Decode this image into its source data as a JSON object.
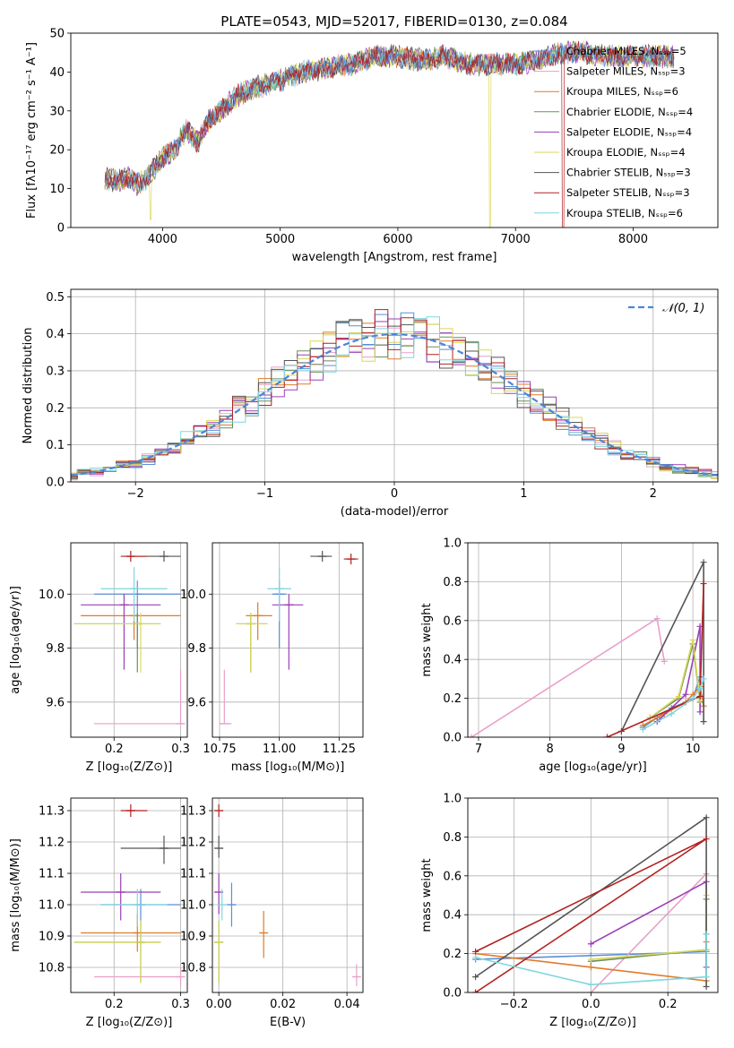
{
  "colors": [
    "#5b8fd6",
    "#e8a0c8",
    "#e07b2a",
    "#6b8f5a",
    "#9a3fb5",
    "#d8d85a",
    "#555555",
    "#b22222",
    "#7fd6e0"
  ],
  "chart_data": [
    {
      "type": "line",
      "title": "PLATE=0543, MJD=52017, FIBERID=0130, z=0.084",
      "xlabel": "wavelength [Angstrom, rest frame]",
      "ylabel": "Flux [fλ10⁻¹⁷ erg cm⁻² s⁻¹ A⁻¹]",
      "xlim": [
        3220,
        8720
      ],
      "ylim": [
        0,
        50
      ],
      "xticks": [
        4000,
        5000,
        6000,
        7000,
        8000
      ],
      "yticks": [
        0,
        10,
        20,
        30,
        40,
        50
      ],
      "grid": false,
      "legend_position": "top-right",
      "series": [
        {
          "name": "Chabrier MILES, Nₛₛₚ=5"
        },
        {
          "name": "Salpeter MILES, Nₛₛₚ=3"
        },
        {
          "name": "Kroupa MILES, Nₛₛₚ=6"
        },
        {
          "name": "Chabrier ELODIE, Nₛₛₚ=4"
        },
        {
          "name": "Salpeter ELODIE, Nₛₛₚ=4"
        },
        {
          "name": "Kroupa ELODIE, Nₛₛₚ=4"
        },
        {
          "name": "Chabrier STELIB, Nₛₛₚ=3"
        },
        {
          "name": "Salpeter STELIB, Nₛₛₚ=3"
        },
        {
          "name": "Kroupa STELIB, Nₛₛₚ=6"
        }
      ],
      "continuum": {
        "x": [
          3500,
          3600,
          3700,
          3800,
          3900,
          4000,
          4100,
          4200,
          4300,
          4400,
          4500,
          4600,
          4700,
          4800,
          4900,
          5000,
          5200,
          5400,
          5600,
          5800,
          6000,
          6200,
          6400,
          6600,
          6800,
          7000,
          7200,
          7400,
          7600,
          7800,
          8000,
          8200,
          8400
        ],
        "y": [
          13,
          12,
          13,
          11,
          14,
          18,
          20,
          25,
          22,
          28,
          30,
          33,
          35,
          36,
          37,
          38,
          40,
          41,
          42,
          44,
          44,
          43,
          44,
          42,
          42,
          42,
          43,
          45,
          45,
          44,
          44,
          44,
          44
        ]
      }
    },
    {
      "type": "line",
      "xlabel": "(data-model)/error",
      "ylabel": "Normed distribution",
      "xlim": [
        -2.5,
        2.5
      ],
      "ylim": [
        0,
        0.52
      ],
      "xticks": [
        -2,
        -1,
        0,
        1,
        2
      ],
      "yticks": [
        0.0,
        0.1,
        0.2,
        0.3,
        0.4,
        0.5
      ],
      "grid": true,
      "legend": "𝒩(0, 1)",
      "legend_position": "top-right"
    },
    {
      "type": "scatter",
      "xlabel": "Z [log₁₀(Z/Z⊙)]",
      "ylabel": "age  [log₁₀(age/yr)]",
      "xlim": [
        0.135,
        0.31
      ],
      "ylim": [
        9.47,
        10.19
      ],
      "xticks": [
        0.2,
        0.3
      ],
      "yticks": [
        9.6,
        9.8,
        10.0
      ],
      "points": [
        {
          "c": 0,
          "x": 0.235,
          "y": 10.0,
          "xe": [
            0.17,
            0.3
          ],
          "ye": [
            9.8,
            10.05
          ]
        },
        {
          "c": 1,
          "x": 0.3,
          "y": 9.52,
          "xe": [
            0.17,
            0.3
          ],
          "ye": [
            9.52,
            9.72
          ]
        },
        {
          "c": 2,
          "x": 0.23,
          "y": 9.92,
          "xe": [
            0.15,
            0.3
          ],
          "ye": [
            9.83,
            9.97
          ]
        },
        {
          "c": 3,
          "x": 0.235,
          "y": 9.89,
          "xe": [
            0.14,
            0.27
          ],
          "ye": [
            9.71,
            9.93
          ]
        },
        {
          "c": 4,
          "x": 0.215,
          "y": 9.96,
          "xe": [
            0.15,
            0.27
          ],
          "ye": [
            9.72,
            10.0
          ]
        },
        {
          "c": 5,
          "x": 0.24,
          "y": 9.89,
          "xe": [
            0.14,
            0.27
          ],
          "ye": [
            9.71,
            9.93
          ]
        },
        {
          "c": 6,
          "x": 0.275,
          "y": 10.14,
          "xe": [
            0.22,
            0.3
          ],
          "ye": [
            10.12,
            10.16
          ]
        },
        {
          "c": 7,
          "x": 0.225,
          "y": 10.14,
          "xe": [
            0.21,
            0.25
          ],
          "ye": [
            10.12,
            10.16
          ]
        },
        {
          "c": 8,
          "x": 0.23,
          "y": 10.02,
          "xe": [
            0.18,
            0.28
          ],
          "ye": [
            9.9,
            10.1
          ]
        }
      ]
    },
    {
      "type": "scatter",
      "xlabel": "mass [log₁₀(M/M⊙)]",
      "xlim": [
        10.72,
        11.35
      ],
      "ylim": [
        9.47,
        10.19
      ],
      "xticks": [
        10.75,
        11.0,
        11.25
      ],
      "yticks": [
        9.6,
        9.8,
        10.0
      ],
      "points": [
        {
          "c": 0,
          "x": 11.0,
          "y": 10.0,
          "xe": [
            10.97,
            11.03
          ],
          "ye": [
            9.8,
            10.05
          ]
        },
        {
          "c": 1,
          "x": 10.77,
          "y": 9.52,
          "xe": [
            10.75,
            10.8
          ],
          "ye": [
            9.52,
            9.72
          ]
        },
        {
          "c": 2,
          "x": 10.91,
          "y": 9.92,
          "xe": [
            10.86,
            10.97
          ],
          "ye": [
            9.83,
            9.97
          ]
        },
        {
          "c": 3,
          "x": 10.88,
          "y": 9.89,
          "xe": [
            10.82,
            10.95
          ],
          "ye": [
            9.71,
            9.93
          ]
        },
        {
          "c": 4,
          "x": 11.04,
          "y": 9.96,
          "xe": [
            10.97,
            11.1
          ],
          "ye": [
            9.72,
            10.0
          ]
        },
        {
          "c": 5,
          "x": 10.88,
          "y": 9.89,
          "xe": [
            10.82,
            10.95
          ],
          "ye": [
            9.71,
            9.93
          ]
        },
        {
          "c": 6,
          "x": 11.18,
          "y": 10.14,
          "xe": [
            11.13,
            11.22
          ],
          "ye": [
            10.12,
            10.16
          ]
        },
        {
          "c": 7,
          "x": 11.3,
          "y": 10.13,
          "xe": [
            11.27,
            11.33
          ],
          "ye": [
            10.11,
            10.15
          ]
        },
        {
          "c": 8,
          "x": 11.0,
          "y": 10.02,
          "xe": [
            10.95,
            11.05
          ],
          "ye": [
            9.9,
            10.1
          ]
        }
      ]
    },
    {
      "type": "line",
      "xlabel": "age  [log₁₀(age/yr)]",
      "ylabel": "mass weight",
      "xlim": [
        6.85,
        10.35
      ],
      "ylim": [
        0,
        1
      ],
      "xticks": [
        7,
        8,
        9,
        10
      ],
      "yticks": [
        0.0,
        0.2,
        0.4,
        0.6,
        0.8,
        1.0
      ],
      "series": [
        {
          "c": 0,
          "x": [
            9.3,
            9.5,
            9.7,
            9.9,
            10.0,
            10.1
          ],
          "y": [
            0.05,
            0.1,
            0.15,
            0.18,
            0.2,
            0.31
          ]
        },
        {
          "c": 1,
          "x": [
            6.9,
            9.5,
            9.6
          ],
          "y": [
            0.0,
            0.61,
            0.39
          ]
        },
        {
          "c": 2,
          "x": [
            9.3,
            9.6,
            9.9,
            10.0,
            10.1,
            10.15
          ],
          "y": [
            0.06,
            0.12,
            0.18,
            0.22,
            0.26,
            0.16
          ]
        },
        {
          "c": 3,
          "x": [
            9.4,
            9.8,
            10.0,
            10.1
          ],
          "y": [
            0.1,
            0.2,
            0.48,
            0.18
          ]
        },
        {
          "c": 4,
          "x": [
            9.5,
            9.9,
            10.1,
            10.1
          ],
          "y": [
            0.08,
            0.22,
            0.57,
            0.13
          ]
        },
        {
          "c": 5,
          "x": [
            9.4,
            9.8,
            10.0,
            10.1
          ],
          "y": [
            0.1,
            0.21,
            0.5,
            0.19
          ]
        },
        {
          "c": 6,
          "x": [
            9.0,
            10.15,
            10.15
          ],
          "y": [
            0.03,
            0.9,
            0.08
          ]
        },
        {
          "c": 7,
          "x": [
            8.8,
            10.1,
            10.15
          ],
          "y": [
            0.0,
            0.21,
            0.79
          ]
        },
        {
          "c": 8,
          "x": [
            9.3,
            9.7,
            10.0,
            10.1,
            10.15
          ],
          "y": [
            0.04,
            0.12,
            0.2,
            0.25,
            0.3
          ]
        }
      ]
    },
    {
      "type": "scatter",
      "xlabel": "Z [log₁₀(Z/Z⊙)]",
      "ylabel": "mass [log₁₀(M/M⊙)]",
      "xlim": [
        0.135,
        0.31
      ],
      "ylim": [
        10.72,
        11.34
      ],
      "xticks": [
        0.2,
        0.3
      ],
      "yticks": [
        10.8,
        10.9,
        11.0,
        11.1,
        11.2,
        11.3
      ],
      "points": [
        {
          "c": 0,
          "x": 0.24,
          "y": 11.0,
          "xe": [
            0.18,
            0.3
          ],
          "ye": [
            10.95,
            11.05
          ]
        },
        {
          "c": 1,
          "x": 0.3,
          "y": 10.77,
          "xe": [
            0.17,
            0.3
          ],
          "ye": [
            10.74,
            10.8
          ]
        },
        {
          "c": 2,
          "x": 0.235,
          "y": 10.91,
          "xe": [
            0.15,
            0.3
          ],
          "ye": [
            10.85,
            10.97
          ]
        },
        {
          "c": 3,
          "x": 0.24,
          "y": 10.88,
          "xe": [
            0.14,
            0.27
          ],
          "ye": [
            10.75,
            10.95
          ]
        },
        {
          "c": 4,
          "x": 0.21,
          "y": 11.04,
          "xe": [
            0.15,
            0.27
          ],
          "ye": [
            10.95,
            11.1
          ]
        },
        {
          "c": 5,
          "x": 0.24,
          "y": 10.88,
          "xe": [
            0.14,
            0.27
          ],
          "ye": [
            10.75,
            10.95
          ]
        },
        {
          "c": 6,
          "x": 0.275,
          "y": 11.18,
          "xe": [
            0.21,
            0.3
          ],
          "ye": [
            11.13,
            11.22
          ]
        },
        {
          "c": 7,
          "x": 0.225,
          "y": 11.3,
          "xe": [
            0.21,
            0.25
          ],
          "ye": [
            11.28,
            11.32
          ]
        },
        {
          "c": 8,
          "x": 0.235,
          "y": 11.0,
          "xe": [
            0.18,
            0.28
          ],
          "ye": [
            10.93,
            11.05
          ]
        }
      ]
    },
    {
      "type": "scatter",
      "xlabel": "E(B-V)",
      "xlim": [
        -0.002,
        0.045
      ],
      "ylim": [
        10.72,
        11.34
      ],
      "xticks": [
        0.0,
        0.02,
        0.04
      ],
      "yticks": [
        10.8,
        10.9,
        11.0,
        11.1,
        11.2,
        11.3
      ],
      "points": [
        {
          "c": 0,
          "x": 0.004,
          "y": 11.0,
          "ye": [
            10.93,
            11.07
          ]
        },
        {
          "c": 1,
          "x": 0.043,
          "y": 10.77,
          "ye": [
            10.74,
            10.81
          ]
        },
        {
          "c": 2,
          "x": 0.014,
          "y": 10.91,
          "ye": [
            10.83,
            10.98
          ]
        },
        {
          "c": 3,
          "x": 0.0,
          "y": 10.88,
          "ye": [
            10.75,
            10.95
          ]
        },
        {
          "c": 4,
          "x": 0.0,
          "y": 11.04,
          "ye": [
            10.97,
            11.1
          ]
        },
        {
          "c": 5,
          "x": 0.0,
          "y": 10.88,
          "ye": [
            10.75,
            10.95
          ]
        },
        {
          "c": 6,
          "x": 0.0,
          "y": 11.18,
          "ye": [
            11.15,
            11.22
          ]
        },
        {
          "c": 7,
          "x": 0.0,
          "y": 11.3,
          "ye": [
            11.28,
            11.32
          ]
        },
        {
          "c": 8,
          "x": 0.001,
          "y": 11.0,
          "ye": [
            10.95,
            11.05
          ]
        }
      ]
    },
    {
      "type": "line",
      "xlabel": "Z [log₁₀(Z/Z⊙)]",
      "ylabel": "mass weight",
      "xlim": [
        -0.32,
        0.33
      ],
      "ylim": [
        0,
        1
      ],
      "xticks": [
        -0.2,
        0.0,
        0.2
      ],
      "yticks": [
        0.0,
        0.2,
        0.4,
        0.6,
        0.8,
        1.0
      ],
      "series": [
        {
          "c": 0,
          "x": [
            -0.3,
            0.0,
            0.3,
            0.3
          ],
          "y": [
            0.17,
            0.19,
            0.21,
            0.3
          ]
        },
        {
          "c": 1,
          "x": [
            0.0,
            0.3
          ],
          "y": [
            0.0,
            0.61
          ]
        },
        {
          "c": 2,
          "x": [
            -0.3,
            0.0,
            0.3,
            0.3
          ],
          "y": [
            0.2,
            0.13,
            0.06,
            0.26
          ]
        },
        {
          "c": 3,
          "x": [
            0.0,
            0.3,
            0.3
          ],
          "y": [
            0.16,
            0.22,
            0.48
          ]
        },
        {
          "c": 4,
          "x": [
            0.0,
            0.3,
            0.3
          ],
          "y": [
            0.25,
            0.57,
            0.13
          ]
        },
        {
          "c": 5,
          "x": [
            0.0,
            0.3,
            0.3
          ],
          "y": [
            0.17,
            0.22,
            0.5
          ]
        },
        {
          "c": 6,
          "x": [
            -0.3,
            0.3,
            0.3
          ],
          "y": [
            0.08,
            0.9,
            0.03
          ]
        },
        {
          "c": 7,
          "x": [
            -0.3,
            0.3,
            -0.3
          ],
          "y": [
            0.0,
            0.79,
            0.21
          ]
        },
        {
          "c": 8,
          "x": [
            -0.3,
            0.0,
            0.3,
            0.3
          ],
          "y": [
            0.18,
            0.04,
            0.08,
            0.3
          ]
        }
      ]
    }
  ]
}
